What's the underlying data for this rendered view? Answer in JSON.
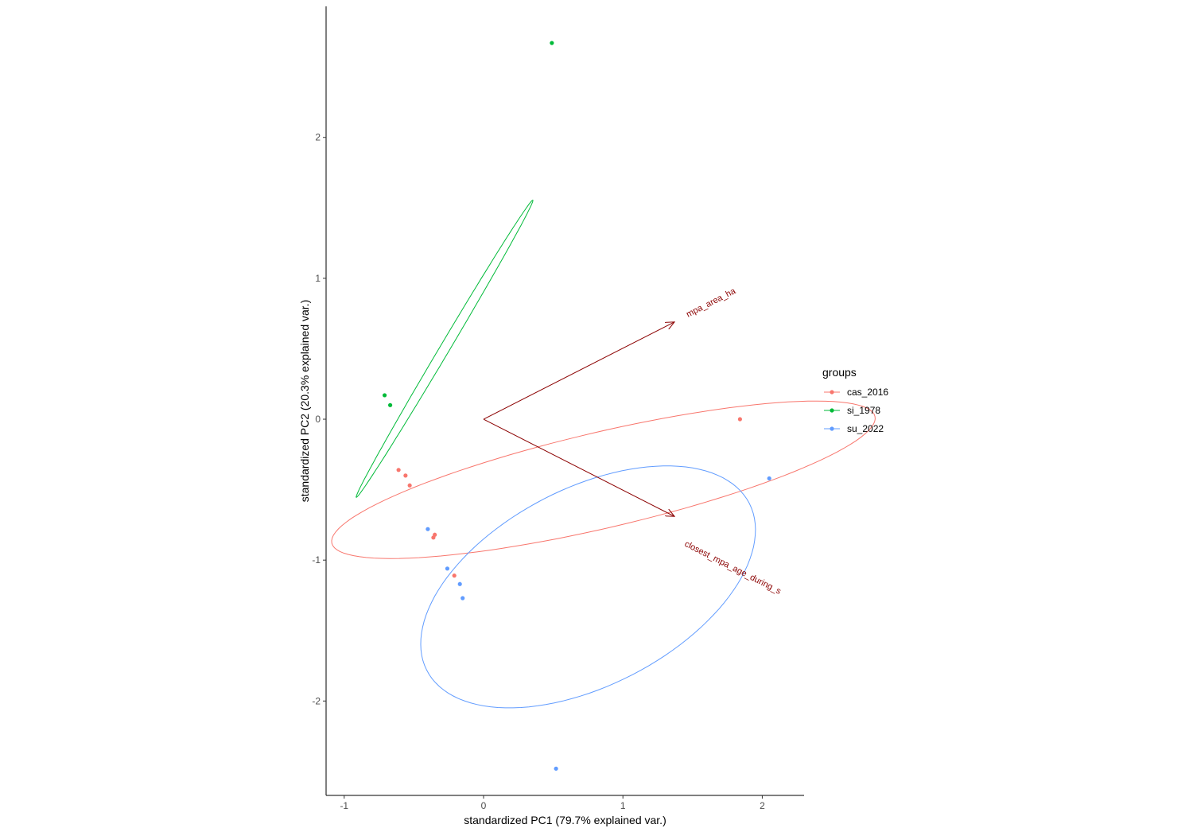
{
  "chart_data": {
    "type": "scatter",
    "title": "",
    "xlabel": "standardized PC1 (79.7% explained var.)",
    "ylabel": "standardized PC2 (20.3% explained var.)",
    "xlim": [
      -1.13,
      2.3
    ],
    "ylim": [
      -2.67,
      2.93
    ],
    "x_ticks": [
      -1,
      0,
      1,
      2
    ],
    "y_ticks": [
      -2,
      -1,
      0,
      1,
      2
    ],
    "x_tick_labels": [
      "-1",
      "0",
      "1",
      "2"
    ],
    "y_tick_labels": [
      "-2",
      "-1",
      "0",
      "1",
      "2"
    ],
    "grid": false,
    "legend": {
      "title": "groups",
      "placement": "right"
    },
    "series": [
      {
        "name": "cas_2016",
        "color": "#F8766D",
        "points": [
          {
            "x": -0.61,
            "y": -0.36
          },
          {
            "x": -0.56,
            "y": -0.4
          },
          {
            "x": -0.53,
            "y": -0.47
          },
          {
            "x": -0.35,
            "y": -0.82
          },
          {
            "x": -0.36,
            "y": -0.84
          },
          {
            "x": -0.21,
            "y": -1.11
          },
          {
            "x": 1.84,
            "y": 0.0
          }
        ],
        "ellipse": {
          "cx": 0.86,
          "cy": -0.43,
          "rx": 2.0,
          "ry": 0.34,
          "angle_deg": 13
        }
      },
      {
        "name": "si_1978",
        "color": "#00BA38",
        "points": [
          {
            "x": -0.71,
            "y": 0.17
          },
          {
            "x": -0.67,
            "y": 0.1
          },
          {
            "x": 0.49,
            "y": 2.67
          }
        ],
        "ellipse": {
          "cx": -0.28,
          "cy": 0.5,
          "rx": 1.23,
          "ry": 0.035,
          "angle_deg": 59
        }
      },
      {
        "name": "su_2022",
        "color": "#619CFF",
        "points": [
          {
            "x": -0.4,
            "y": -0.78
          },
          {
            "x": -0.26,
            "y": -1.06
          },
          {
            "x": -0.17,
            "y": -1.17
          },
          {
            "x": -0.15,
            "y": -1.27
          },
          {
            "x": 2.05,
            "y": -0.42
          },
          {
            "x": 0.52,
            "y": -2.48
          }
        ],
        "ellipse": {
          "cx": 0.75,
          "cy": -1.19,
          "rx": 1.3,
          "ry": 0.7,
          "angle_deg": 27
        }
      }
    ],
    "arrows": [
      {
        "name": "mpa_area_ha",
        "x": 1.37,
        "y": 0.69,
        "label_x": 1.64,
        "label_y": 0.81
      },
      {
        "name": "closest_mpa_age_during_s",
        "x": 1.37,
        "y": -0.69,
        "label_x": 1.78,
        "label_y": -1.07
      }
    ],
    "arrow_color": "#8B0000"
  }
}
